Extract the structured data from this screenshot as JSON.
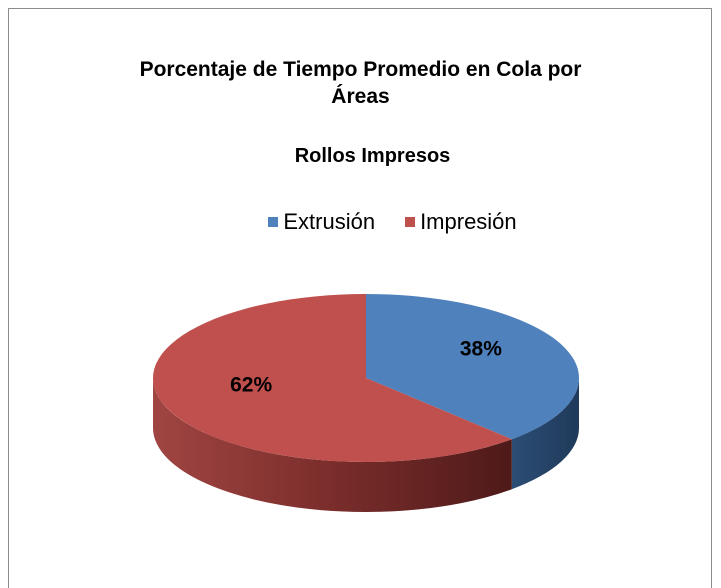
{
  "chart_data": {
    "type": "pie",
    "title": "Porcentaje de Tiempo Promedio en Cola por Áreas",
    "subtitle": "Rollos Impresos",
    "categories": [
      "Extrusión",
      "Impresión"
    ],
    "values": [
      38,
      62
    ],
    "value_labels": [
      "38%",
      "62%"
    ],
    "colors": [
      "#4f81bd",
      "#c0504d"
    ],
    "legend": "top"
  }
}
